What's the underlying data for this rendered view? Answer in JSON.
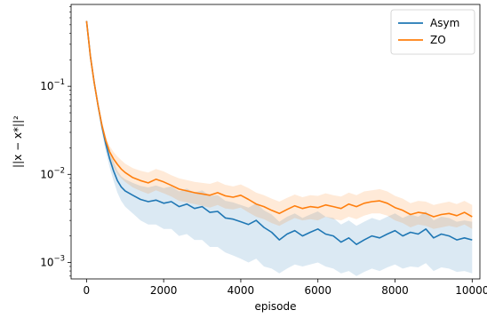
{
  "chart_data": {
    "type": "line",
    "title": "",
    "xlabel": "episode",
    "ylabel": "||x − x*||²",
    "xscale": "linear",
    "yscale": "log",
    "xlim": [
      -400,
      10200
    ],
    "ylim": [
      0.00065,
      0.85
    ],
    "xticks": [
      0,
      2000,
      4000,
      6000,
      8000,
      10000
    ],
    "xtick_labels": [
      "0",
      "2000",
      "4000",
      "6000",
      "8000",
      "10000"
    ],
    "yticks": [
      0.001,
      0.01,
      0.1
    ],
    "ytick_labels": [
      {
        "base": "10",
        "exp": "−3"
      },
      {
        "base": "10",
        "exp": "−2"
      },
      {
        "base": "10",
        "exp": "−1"
      }
    ],
    "grid": false,
    "legend": "top-right",
    "series": [
      {
        "name": "Asym",
        "color": "#1f77b4",
        "band_color": "#1f77b4",
        "band_alpha": 0.16,
        "x": [
          0,
          100,
          200,
          300,
          400,
          500,
          600,
          700,
          800,
          900,
          1000,
          1200,
          1400,
          1600,
          1800,
          2000,
          2200,
          2400,
          2600,
          2800,
          3000,
          3200,
          3400,
          3600,
          3800,
          4000,
          4200,
          4400,
          4600,
          4800,
          5000,
          5200,
          5400,
          5600,
          5800,
          6000,
          6200,
          6400,
          6600,
          6800,
          7000,
          7200,
          7400,
          7600,
          7800,
          8000,
          8200,
          8400,
          8600,
          8800,
          9000,
          9200,
          9400,
          9600,
          9800,
          10000
        ],
        "y": [
          0.55,
          0.22,
          0.11,
          0.06,
          0.035,
          0.022,
          0.015,
          0.011,
          0.0085,
          0.0072,
          0.0065,
          0.0058,
          0.0052,
          0.0049,
          0.0051,
          0.0047,
          0.0049,
          0.0043,
          0.0046,
          0.0041,
          0.0043,
          0.0037,
          0.0038,
          0.0032,
          0.0031,
          0.0029,
          0.0027,
          0.003,
          0.0025,
          0.0022,
          0.0018,
          0.0021,
          0.0023,
          0.002,
          0.0022,
          0.0024,
          0.0021,
          0.002,
          0.0017,
          0.0019,
          0.0016,
          0.0018,
          0.002,
          0.0019,
          0.0021,
          0.0023,
          0.002,
          0.0022,
          0.0021,
          0.0024,
          0.0019,
          0.0021,
          0.002,
          0.0018,
          0.0019,
          0.0018
        ],
        "lower": [
          0.53,
          0.2,
          0.1,
          0.054,
          0.03,
          0.018,
          0.012,
          0.0085,
          0.0062,
          0.005,
          0.0043,
          0.0036,
          0.003,
          0.0027,
          0.0027,
          0.0024,
          0.0024,
          0.002,
          0.0021,
          0.0018,
          0.0018,
          0.0015,
          0.0015,
          0.0013,
          0.0012,
          0.0011,
          0.001,
          0.0011,
          0.0009,
          0.00085,
          0.00075,
          0.00085,
          0.00095,
          0.0009,
          0.00095,
          0.001,
          0.0009,
          0.00085,
          0.00075,
          0.0008,
          0.0007,
          0.00078,
          0.00085,
          0.0008,
          0.00088,
          0.00095,
          0.00085,
          0.0009,
          0.00088,
          0.00098,
          0.0008,
          0.00088,
          0.00085,
          0.00078,
          0.0008,
          0.00075
        ],
        "upper": [
          0.58,
          0.24,
          0.12,
          0.066,
          0.04,
          0.026,
          0.018,
          0.014,
          0.011,
          0.0095,
          0.0088,
          0.008,
          0.0074,
          0.0071,
          0.0075,
          0.007,
          0.0073,
          0.0064,
          0.0069,
          0.0062,
          0.0066,
          0.0057,
          0.0058,
          0.005,
          0.0048,
          0.0045,
          0.0042,
          0.0047,
          0.0039,
          0.0035,
          0.0029,
          0.0033,
          0.0036,
          0.0032,
          0.0035,
          0.0038,
          0.0033,
          0.0032,
          0.0027,
          0.003,
          0.0026,
          0.0029,
          0.0032,
          0.003,
          0.0033,
          0.0036,
          0.0032,
          0.0035,
          0.0033,
          0.0038,
          0.003,
          0.0033,
          0.0032,
          0.0029,
          0.003,
          0.0029
        ]
      },
      {
        "name": "ZO",
        "color": "#ff7f0e",
        "band_color": "#ff7f0e",
        "band_alpha": 0.16,
        "x": [
          0,
          100,
          200,
          300,
          400,
          500,
          600,
          700,
          800,
          900,
          1000,
          1200,
          1400,
          1600,
          1800,
          2000,
          2200,
          2400,
          2600,
          2800,
          3000,
          3200,
          3400,
          3600,
          3800,
          4000,
          4200,
          4400,
          4600,
          4800,
          5000,
          5200,
          5400,
          5600,
          5800,
          6000,
          6200,
          6400,
          6600,
          6800,
          7000,
          7200,
          7400,
          7600,
          7800,
          8000,
          8200,
          8400,
          8600,
          8800,
          9000,
          9200,
          9400,
          9600,
          9800,
          10000
        ],
        "y": [
          0.55,
          0.22,
          0.11,
          0.06,
          0.036,
          0.024,
          0.018,
          0.015,
          0.013,
          0.0115,
          0.0105,
          0.0092,
          0.0085,
          0.008,
          0.0088,
          0.0082,
          0.0075,
          0.0068,
          0.0065,
          0.0062,
          0.006,
          0.0058,
          0.0062,
          0.0057,
          0.0055,
          0.0058,
          0.0052,
          0.0046,
          0.0043,
          0.0039,
          0.0036,
          0.004,
          0.0044,
          0.0041,
          0.0043,
          0.0042,
          0.0045,
          0.0043,
          0.0041,
          0.0046,
          0.0043,
          0.0047,
          0.0049,
          0.005,
          0.0047,
          0.0042,
          0.0039,
          0.0035,
          0.0037,
          0.0036,
          0.0033,
          0.0035,
          0.0036,
          0.0034,
          0.0037,
          0.0033
        ],
        "lower": [
          0.53,
          0.21,
          0.1,
          0.056,
          0.033,
          0.021,
          0.015,
          0.012,
          0.01,
          0.009,
          0.0082,
          0.0071,
          0.0065,
          0.006,
          0.0066,
          0.0061,
          0.0056,
          0.005,
          0.0048,
          0.0046,
          0.0044,
          0.0042,
          0.0045,
          0.0041,
          0.004,
          0.0042,
          0.0037,
          0.0033,
          0.0031,
          0.0028,
          0.0026,
          0.0029,
          0.0032,
          0.003,
          0.0031,
          0.003,
          0.0033,
          0.0031,
          0.003,
          0.0033,
          0.0031,
          0.0034,
          0.0036,
          0.0036,
          0.0034,
          0.003,
          0.0028,
          0.0025,
          0.0027,
          0.0026,
          0.0024,
          0.0025,
          0.0026,
          0.0025,
          0.0027,
          0.0024
        ],
        "upper": [
          0.57,
          0.23,
          0.12,
          0.065,
          0.04,
          0.027,
          0.021,
          0.018,
          0.016,
          0.0145,
          0.0132,
          0.0118,
          0.011,
          0.0105,
          0.0115,
          0.0108,
          0.0098,
          0.009,
          0.0086,
          0.0082,
          0.008,
          0.0078,
          0.0083,
          0.0076,
          0.0073,
          0.0077,
          0.007,
          0.0062,
          0.0058,
          0.0053,
          0.0049,
          0.0054,
          0.0059,
          0.0055,
          0.0058,
          0.0057,
          0.0061,
          0.0058,
          0.0056,
          0.0062,
          0.0058,
          0.0064,
          0.0066,
          0.0068,
          0.0064,
          0.0057,
          0.0053,
          0.0047,
          0.005,
          0.0049,
          0.0045,
          0.0047,
          0.0049,
          0.0046,
          0.005,
          0.0045
        ]
      }
    ]
  }
}
